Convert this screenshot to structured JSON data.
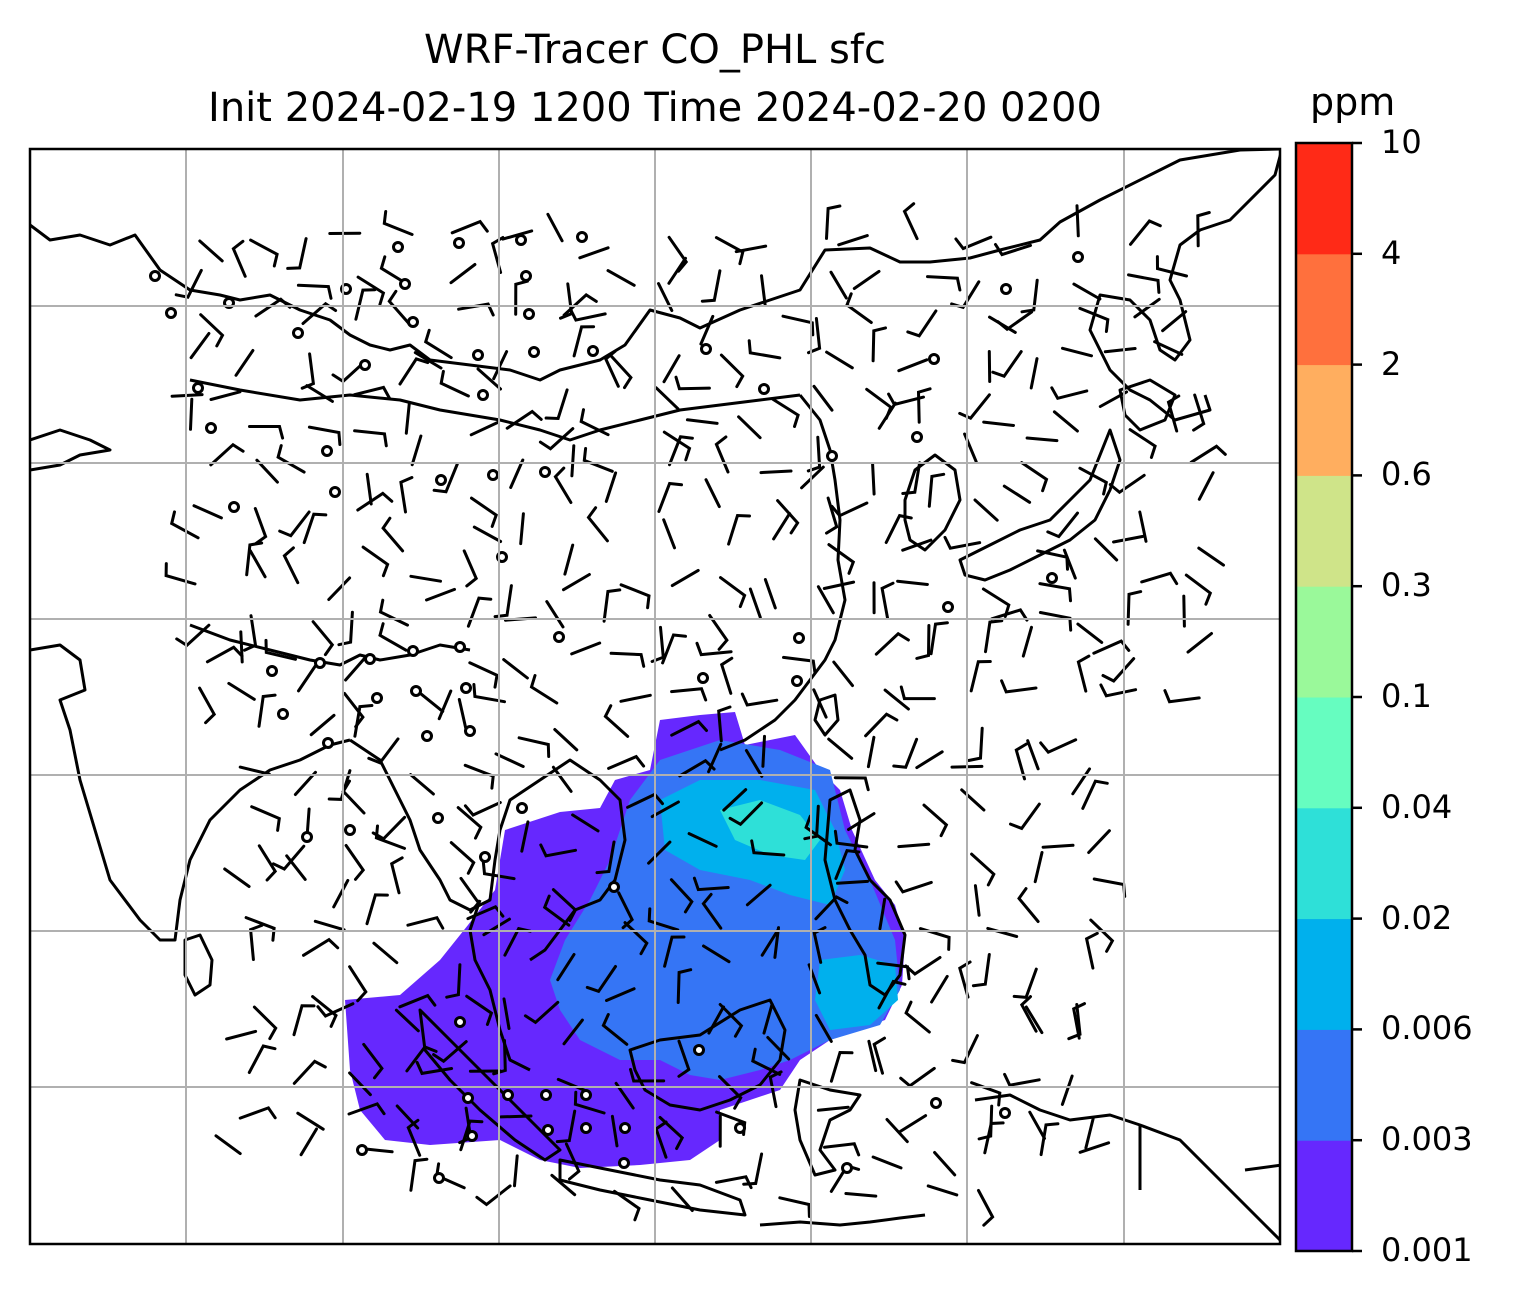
{
  "title": {
    "line1": "WRF-Tracer CO_PHL sfc",
    "line2": "Init 2024-02-19 1200 Time 2024-02-20 0200"
  },
  "colorbar": {
    "units": "ppm",
    "tick_labels": [
      "0.001",
      "0.003",
      "0.006",
      "0.02",
      "0.04",
      "0.1",
      "0.3",
      "0.6",
      "2",
      "4",
      "10"
    ],
    "colors": [
      "#6628fe",
      "#3575f5",
      "#00b0ed",
      "#2ee0d8",
      "#66fdc0",
      "#9af99a",
      "#cfe489",
      "#ffae5f",
      "#ff703d",
      "#ff2a17"
    ]
  },
  "map": {
    "region": "East and Southeast Asia",
    "field": "surface CO tracer concentration with wind barbs"
  }
}
